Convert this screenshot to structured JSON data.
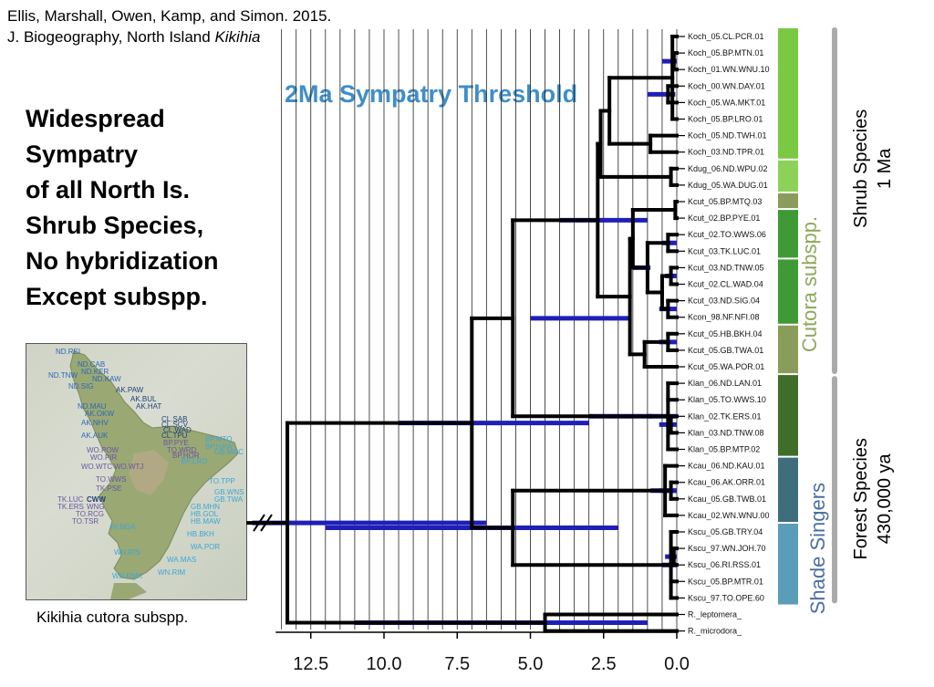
{
  "citation": {
    "line1": "Ellis, Marshall, Owen, Kamp, and Simon. 2015.",
    "line2_prefix": "J. Biogeography,  North Island ",
    "line2_italic": "Kikihia"
  },
  "threshold_label": "2Ma Sympatry Threshold",
  "sympatry_lines": [
    "Widespread",
    "Sympatry",
    "of all North Is.",
    "Shrub Species,",
    "No hybridization",
    "Except subspp."
  ],
  "map": {
    "caption": "Kikihia cutora subspp.",
    "labels": [
      "ND.REI",
      "ND.CAB",
      "ND.KER",
      "ND.TNW",
      "ND.KAW",
      "ND.SIG",
      "AK.PAW",
      "AK.BUL",
      "ND.MAU",
      "AK.HAT",
      "AK.OKW",
      "AK.NHV",
      "CL.SAB",
      "CL.SCV",
      "CL.WAD",
      "CL.TPU",
      "AK.AUK",
      "BP.MTQ",
      "BP.PYE",
      "BP.HAW",
      "TO.WRD",
      "GB.MRC",
      "WO.POW",
      "WO.PIR",
      "BP.HOR",
      "BP.LRO",
      "WO.WTC",
      "WO.WTJ",
      "TO.WWS",
      "TO.TPP",
      "TK.PSE",
      "GB.WNS",
      "GB.TWA",
      "TK.LUC",
      "CWW",
      "GB.MHN",
      "TK.ERS",
      "WNG",
      "HB.GOL",
      "TO.RCG",
      "HB.MAW",
      "TO.TSR",
      "RI.NGA",
      "HB.BKH",
      "WA.POR",
      "WN.RIS",
      "WA.MAS",
      "WN.RMK",
      "WN.RIM"
    ]
  },
  "tree": {
    "tips": [
      "Koch_05.CL.PCR.01",
      "Koch_05.BP.MTN.01",
      "Koch_01.WN.WNU.10",
      "Koch_00.WN.DAY.01",
      "Koch_05.WA.MKT.01",
      "Koch_05.BP.LRO.01",
      "Koch_05.ND.TWH.01",
      "Koch_03.ND.TPR.01",
      "Kdug_06.ND.WPU.02",
      "Kdug_05.WA.DUG.01",
      "Kcut_05.BP.MTQ.03",
      "Kcut_02.BP.PYE.01",
      "Kcut_02.TO.WWS.06",
      "Kcut_03.TK.LUC.01",
      "Kcut_03.ND.TNW.05",
      "Kcut_02.CL.WAD.04",
      "Kcut_03.ND.SIG.04",
      "Kcon_98.NF.NFI.08",
      "Kcut_05.HB.BKH.04",
      "Kcut_05.GB.TWA.01",
      "Kcut_05.WA.POR.01",
      "Klan_06.ND.LAN.01",
      "Klan_05.TO.WWS.10",
      "Klan_02.TK.ERS.01",
      "Klan_03.ND.TNW.08",
      "Klan_05.BP.MTP.02",
      "Kcau_06.ND.KAU.01",
      "Kcau_06.AK.ORR.01",
      "Kcau_05.GB.TWB.01",
      "Kcau_02.WN.WNU.00",
      "Kscu_05.GB.TRY.04",
      "Kscu_97.WN.JOH.70",
      "Kscu_06.RI.RSS.01",
      "Kscu_05.BP.MTR.01",
      "Kscu_97.TO.OPE.60",
      "R._leptomera_",
      "R._microdora_"
    ],
    "axis_ticks": [
      "12.5",
      "10.0",
      "7.5",
      "5.0",
      "2.5",
      "0.0"
    ],
    "axis_tick_values": [
      12.5,
      10.0,
      7.5,
      5.0,
      2.5,
      0.0
    ],
    "axis_max_ma": 13.7,
    "groups": {
      "cutora_label": "Cutora subspp.",
      "shade_label": "Shade Singers",
      "shrub_label_1": "Shrub Species",
      "shrub_label_2": "1 Ma",
      "forest_label_1": "Forest Species",
      "forest_label_2": "430,000 ya"
    },
    "colors": {
      "branch": "#000000",
      "hpd_bar": "#1f1fb8",
      "shrub_green": "#7ac943",
      "kdug_green": "#8ed158",
      "cutora_olive": "#8a9c5a",
      "cutora_green": "#3f9a36",
      "forest_green": "#3f6e28",
      "shade_dark": "#3e6d7c",
      "shade_light": "#5a9db8",
      "cutora_text": "#8ea85a",
      "shade_text": "#4a6fa0",
      "threshold_text": "#3e8ec9"
    }
  }
}
